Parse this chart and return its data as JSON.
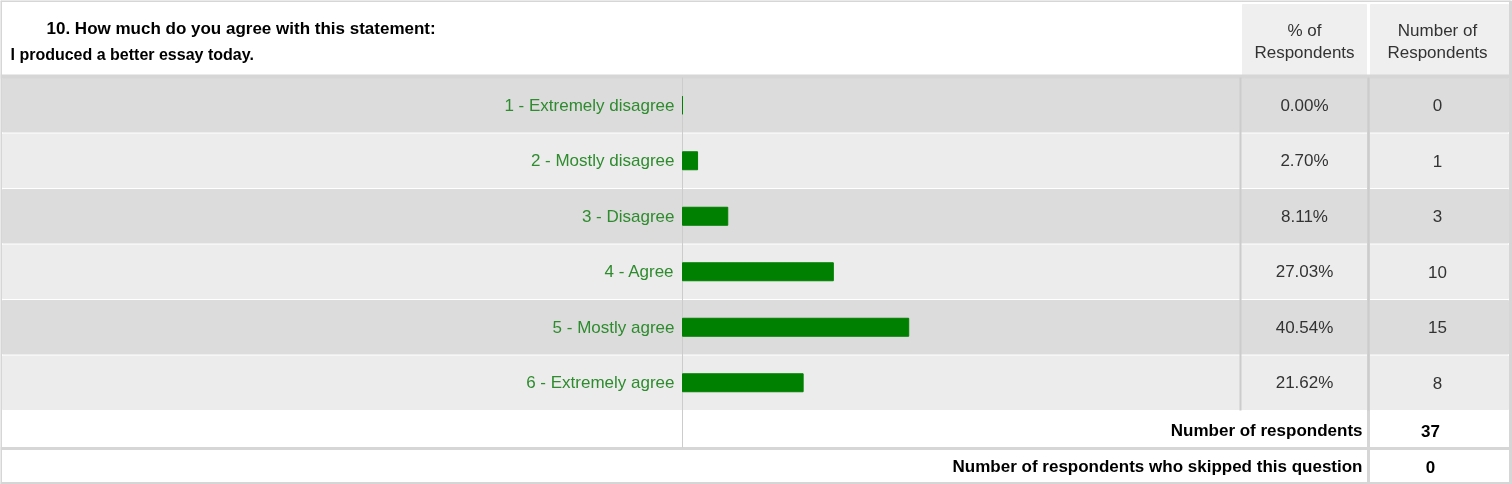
{
  "chart_data": {
    "type": "bar",
    "orientation": "horizontal",
    "title": "10. How much do you agree with this statement:",
    "subtitle": "I produced a better essay today.",
    "categories": [
      "1 - Extremely disagree",
      "2 - Mostly disagree",
      "3 - Disagree",
      "4 - Agree",
      "5 - Mostly agree",
      "6 - Extremely agree"
    ],
    "values": [
      0.0,
      2.7,
      8.11,
      27.03,
      40.54,
      21.62
    ],
    "value_labels": [
      "0.00%",
      "2.70%",
      "8.11%",
      "27.03%",
      "40.54%",
      "21.62%"
    ],
    "color": "#008000",
    "xlim": [
      0,
      100
    ],
    "tick_labels": false,
    "annotations": [
      "% of\nRespondents",
      "Number of\nRespondents",
      "0",
      "1",
      "3",
      "10",
      "15",
      "8",
      "Number of respondents",
      "37",
      "Number of respondents who skipped this question",
      "0"
    ]
  }
}
